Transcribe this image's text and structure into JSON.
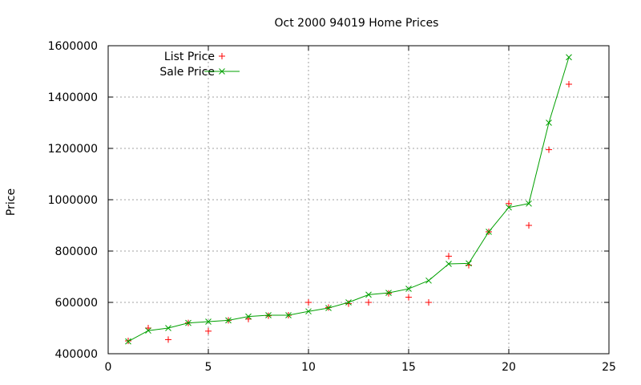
{
  "chart_data": {
    "type": "line",
    "title": "Oct 2000 94019 Home Prices",
    "xlabel": "",
    "ylabel": "Price",
    "xlim": [
      0,
      25
    ],
    "ylim": [
      400000,
      1600000
    ],
    "xticks": [
      0,
      5,
      10,
      15,
      20,
      25
    ],
    "yticks": [
      400000,
      600000,
      800000,
      1000000,
      1200000,
      1400000,
      1600000
    ],
    "grid": true,
    "legend_position": "top-left",
    "series": [
      {
        "name": "List Price",
        "style": "points",
        "marker": "+",
        "color": "#ff0000",
        "x": [
          1,
          2,
          3,
          4,
          5,
          6,
          7,
          8,
          9,
          10,
          11,
          12,
          13,
          14,
          15,
          16,
          17,
          18,
          19,
          20,
          21,
          22,
          23
        ],
        "values": [
          450000,
          500000,
          455000,
          520000,
          488000,
          530000,
          535000,
          548000,
          550000,
          600000,
          580000,
          595000,
          600000,
          635000,
          620000,
          600000,
          780000,
          745000,
          875000,
          985000,
          900000,
          1195000,
          1450000
        ]
      },
      {
        "name": "Sale Price",
        "style": "linespoints",
        "marker": "x",
        "color": "#00a000",
        "x": [
          1,
          2,
          3,
          4,
          5,
          6,
          7,
          8,
          9,
          10,
          11,
          12,
          13,
          14,
          15,
          16,
          17,
          18,
          19,
          20,
          21,
          22,
          23
        ],
        "values": [
          448000,
          490000,
          500000,
          520000,
          525000,
          530000,
          545000,
          550000,
          550000,
          565000,
          578000,
          600000,
          630000,
          637000,
          653000,
          685000,
          750000,
          752000,
          875000,
          970000,
          985000,
          1300000,
          1555000
        ]
      }
    ]
  }
}
